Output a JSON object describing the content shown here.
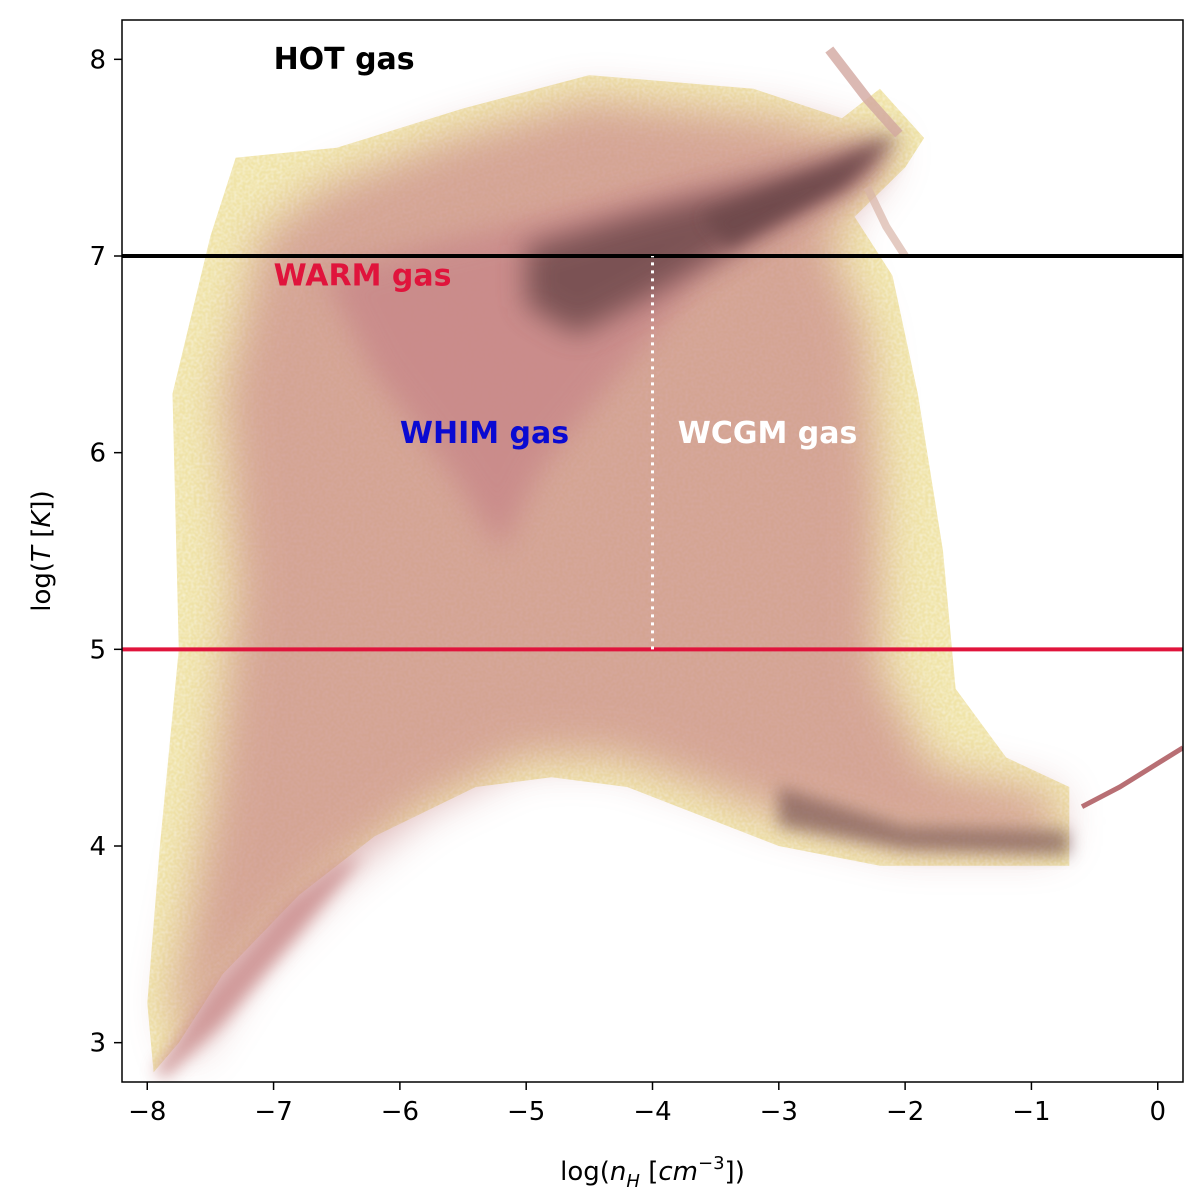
{
  "chart_data": {
    "type": "heatmap",
    "title": "",
    "xlabel": "log(n_H [cm^-3])",
    "xlabel_parts": {
      "prefix": "log(",
      "var": "n",
      "sub": "H",
      "unit": " [",
      "unit_var": "cm",
      "sup": "−3",
      "suffix": "])"
    },
    "ylabel": "log(T [K])",
    "ylabel_parts": {
      "prefix": "log(",
      "var": "T",
      "unit": " [",
      "unit_var": "K",
      "suffix": "])"
    },
    "xlim": [
      -8.2,
      0.2
    ],
    "ylim": [
      2.8,
      8.2
    ],
    "xticks": [
      {
        "value": -8,
        "label": "−8"
      },
      {
        "value": -7,
        "label": "−7"
      },
      {
        "value": -6,
        "label": "−6"
      },
      {
        "value": -5,
        "label": "−5"
      },
      {
        "value": -4,
        "label": "−4"
      },
      {
        "value": -3,
        "label": "−3"
      },
      {
        "value": -2,
        "label": "−2"
      },
      {
        "value": -1,
        "label": "−1"
      },
      {
        "value": 0,
        "label": "0"
      }
    ],
    "yticks": [
      {
        "value": 3,
        "label": "3"
      },
      {
        "value": 4,
        "label": "4"
      },
      {
        "value": 5,
        "label": "5"
      },
      {
        "value": 6,
        "label": "6"
      },
      {
        "value": 7,
        "label": "7"
      },
      {
        "value": 8,
        "label": "8"
      }
    ],
    "grid": false,
    "colormap": {
      "low": "#f0e4a8",
      "mid": "#c98a8a",
      "high": "#6e4a4c"
    },
    "thresholds": [
      {
        "name": "hot-threshold",
        "type": "horizontal",
        "y": 7,
        "color": "#000000"
      },
      {
        "name": "warm-threshold",
        "type": "horizontal",
        "y": 5,
        "color": "#e0143c"
      },
      {
        "name": "density-threshold",
        "type": "vertical-dotted",
        "x": -4,
        "y_range": [
          5,
          7
        ],
        "color": "#ffffff"
      }
    ],
    "annotations": [
      {
        "name": "hot-gas-label",
        "text": "HOT gas",
        "x": -7.0,
        "y": 7.95,
        "color": "#000000"
      },
      {
        "name": "warm-gas-label",
        "text": "WARM gas",
        "x": -7.0,
        "y": 6.85,
        "color": "#e0143c"
      },
      {
        "name": "whim-gas-label",
        "text": "WHIM gas",
        "x": -6.0,
        "y": 6.05,
        "color": "#0a0ad2"
      },
      {
        "name": "wcgm-gas-label",
        "text": "WCGM gas",
        "x": -3.8,
        "y": 6.05,
        "color": "#ffffff"
      }
    ]
  }
}
